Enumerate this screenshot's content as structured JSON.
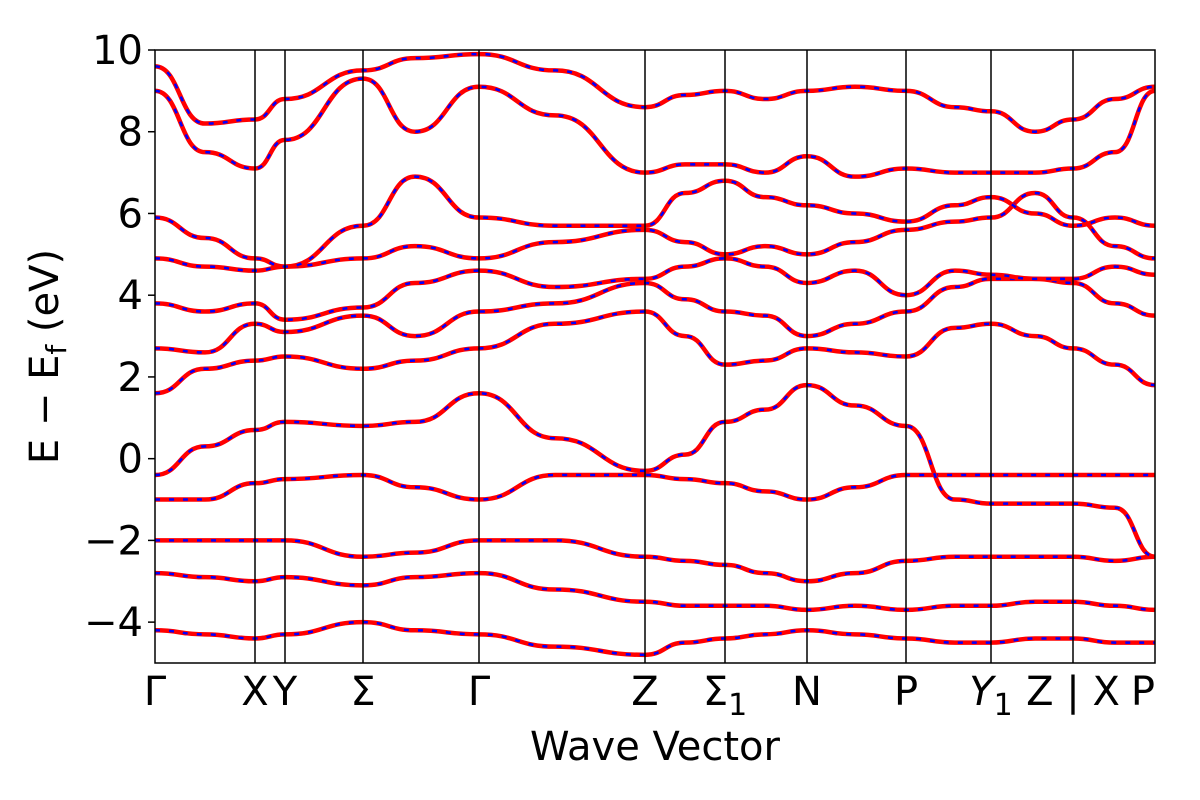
{
  "chart_data": {
    "type": "line",
    "xlabel": "Wave Vector",
    "ylabel": "E − E",
    "ylabel_sub": "f",
    "ylabel_unit": " (eV)",
    "ylim": [
      -5,
      10
    ],
    "yticks": [
      {
        "value": 10,
        "label": "10"
      },
      {
        "value": 8,
        "label": "8"
      },
      {
        "value": 6,
        "label": "6"
      },
      {
        "value": 4,
        "label": "4"
      },
      {
        "value": 2,
        "label": "2"
      },
      {
        "value": 0,
        "label": "0"
      },
      {
        "value": -2,
        "label": "−2"
      },
      {
        "value": -4,
        "label": "−4"
      }
    ],
    "kpoints": [
      {
        "x": 0.0,
        "label": "Γ"
      },
      {
        "x": 0.1,
        "label": "X"
      },
      {
        "x": 0.13,
        "label": "Y"
      },
      {
        "x": 0.208,
        "label": "Σ"
      },
      {
        "x": 0.324,
        "label": "Γ"
      },
      {
        "x": 0.49,
        "label": "Z"
      },
      {
        "x": 0.57,
        "label": "Σ",
        "sub": "1"
      },
      {
        "x": 0.652,
        "label": "N"
      },
      {
        "x": 0.751,
        "label": "P"
      },
      {
        "x": 0.836,
        "label": "Y",
        "sub": "1",
        "italic": true
      },
      {
        "x": 0.918,
        "label": "Z | X"
      },
      {
        "x": 1.0,
        "label": "P"
      }
    ],
    "grid": false,
    "legend": "none",
    "line_colors": {
      "primary": "#ff0000",
      "secondary": "#0000ff"
    },
    "series": [
      {
        "x": [
          0,
          0.05,
          0.1,
          0.13,
          0.208,
          0.26,
          0.324,
          0.4,
          0.49,
          0.53,
          0.57,
          0.61,
          0.652,
          0.7,
          0.751,
          0.8,
          0.836,
          0.88,
          0.918,
          0.96,
          1.0
        ],
        "y": [
          -4.2,
          -4.3,
          -4.4,
          -4.3,
          -4.0,
          -4.2,
          -4.3,
          -4.6,
          -4.8,
          -4.5,
          -4.4,
          -4.3,
          -4.2,
          -4.3,
          -4.4,
          -4.5,
          -4.5,
          -4.4,
          -4.4,
          -4.5,
          -4.5
        ]
      },
      {
        "x": [
          0,
          0.05,
          0.1,
          0.13,
          0.208,
          0.26,
          0.324,
          0.4,
          0.49,
          0.53,
          0.57,
          0.61,
          0.652,
          0.7,
          0.751,
          0.8,
          0.836,
          0.88,
          0.918,
          0.96,
          1.0
        ],
        "y": [
          -2.8,
          -2.9,
          -3.0,
          -2.9,
          -3.1,
          -2.9,
          -2.8,
          -3.2,
          -3.5,
          -3.6,
          -3.6,
          -3.6,
          -3.7,
          -3.6,
          -3.7,
          -3.6,
          -3.6,
          -3.5,
          -3.5,
          -3.6,
          -3.7
        ]
      },
      {
        "x": [
          0,
          0.05,
          0.1,
          0.13,
          0.208,
          0.26,
          0.324,
          0.4,
          0.49,
          0.53,
          0.57,
          0.61,
          0.652,
          0.7,
          0.751,
          0.8,
          0.836,
          0.88,
          0.918,
          0.96,
          1.0
        ],
        "y": [
          -2.0,
          -2.0,
          -2.0,
          -2.0,
          -2.4,
          -2.3,
          -2.0,
          -2.0,
          -2.4,
          -2.5,
          -2.6,
          -2.8,
          -3.0,
          -2.8,
          -2.5,
          -2.4,
          -2.4,
          -2.4,
          -2.4,
          -2.5,
          -2.4
        ]
      },
      {
        "x": [
          0,
          0.05,
          0.1,
          0.13,
          0.208,
          0.26,
          0.324,
          0.4,
          0.49,
          0.53,
          0.57,
          0.61,
          0.652,
          0.7,
          0.751,
          0.8,
          0.836,
          0.88,
          0.918,
          0.96,
          1.0
        ],
        "y": [
          -1.0,
          -1.0,
          -0.6,
          -0.5,
          -0.4,
          -0.7,
          -1.0,
          -0.4,
          -0.4,
          -0.5,
          -0.6,
          -0.8,
          -1.0,
          -0.7,
          -0.4,
          -0.4,
          -0.4,
          -0.4,
          -0.4,
          -0.4,
          -0.4
        ]
      },
      {
        "x": [
          0,
          0.05,
          0.1,
          0.13,
          0.208,
          0.26,
          0.324,
          0.4,
          0.49,
          0.53,
          0.57,
          0.61,
          0.652,
          0.7,
          0.751,
          0.8,
          0.836,
          0.88,
          0.918,
          0.96,
          1.0
        ],
        "y": [
          -0.4,
          0.3,
          0.7,
          0.9,
          0.8,
          0.9,
          1.6,
          0.5,
          -0.3,
          0.1,
          0.9,
          1.2,
          1.8,
          1.3,
          0.8,
          -1.0,
          -1.1,
          -1.1,
          -1.1,
          -1.2,
          -2.4
        ]
      },
      {
        "x": [
          0,
          0.05,
          0.1,
          0.13,
          0.208,
          0.26,
          0.324,
          0.4,
          0.49,
          0.53,
          0.57,
          0.61,
          0.652,
          0.7,
          0.751,
          0.8,
          0.836,
          0.88,
          0.918,
          0.96,
          1.0
        ],
        "y": [
          1.6,
          2.2,
          2.4,
          2.5,
          2.2,
          2.4,
          2.7,
          3.3,
          3.6,
          3.0,
          2.3,
          2.4,
          2.7,
          2.6,
          2.5,
          3.2,
          3.3,
          3.0,
          2.7,
          2.3,
          1.8
        ]
      },
      {
        "x": [
          0,
          0.05,
          0.1,
          0.13,
          0.208,
          0.26,
          0.324,
          0.4,
          0.49,
          0.53,
          0.57,
          0.61,
          0.652,
          0.7,
          0.751,
          0.8,
          0.836,
          0.88,
          0.918,
          0.96,
          1.0
        ],
        "y": [
          2.7,
          2.6,
          3.3,
          3.1,
          3.5,
          3.0,
          3.6,
          3.8,
          4.3,
          3.9,
          3.6,
          3.5,
          3.0,
          3.3,
          3.6,
          4.2,
          4.4,
          4.4,
          4.3,
          3.8,
          3.5
        ]
      },
      {
        "x": [
          0,
          0.05,
          0.1,
          0.13,
          0.208,
          0.26,
          0.324,
          0.4,
          0.49,
          0.53,
          0.57,
          0.61,
          0.652,
          0.7,
          0.751,
          0.8,
          0.836,
          0.88,
          0.918,
          0.96,
          1.0
        ],
        "y": [
          3.8,
          3.6,
          3.8,
          3.4,
          3.7,
          4.3,
          4.6,
          4.2,
          4.4,
          4.7,
          4.9,
          4.7,
          4.3,
          4.6,
          4.0,
          4.6,
          4.5,
          4.4,
          4.4,
          4.7,
          4.5
        ]
      },
      {
        "x": [
          0,
          0.05,
          0.1,
          0.13,
          0.208,
          0.26,
          0.324,
          0.4,
          0.49,
          0.53,
          0.57,
          0.61,
          0.652,
          0.7,
          0.751,
          0.8,
          0.836,
          0.88,
          0.918,
          0.96,
          1.0
        ],
        "y": [
          4.9,
          4.7,
          4.6,
          4.7,
          4.9,
          5.2,
          4.9,
          5.3,
          5.6,
          5.3,
          5.0,
          5.2,
          5.0,
          5.3,
          5.6,
          5.8,
          5.9,
          6.5,
          5.9,
          5.2,
          4.9
        ]
      },
      {
        "x": [
          0,
          0.05,
          0.1,
          0.13,
          0.208,
          0.26,
          0.324,
          0.4,
          0.49,
          0.53,
          0.57,
          0.61,
          0.652,
          0.7,
          0.751,
          0.8,
          0.836,
          0.88,
          0.918,
          0.96,
          1.0
        ],
        "y": [
          5.9,
          5.4,
          4.9,
          4.7,
          5.7,
          6.9,
          5.9,
          5.7,
          5.7,
          6.5,
          6.8,
          6.4,
          6.2,
          6.0,
          5.8,
          6.2,
          6.4,
          6.0,
          5.7,
          5.9,
          5.7
        ]
      },
      {
        "x": [
          0,
          0.05,
          0.1,
          0.13,
          0.208,
          0.26,
          0.324,
          0.4,
          0.49,
          0.53,
          0.57,
          0.61,
          0.652,
          0.7,
          0.751,
          0.8,
          0.836,
          0.88,
          0.918,
          0.96,
          1.0
        ],
        "y": [
          9.0,
          7.5,
          7.1,
          7.8,
          9.3,
          8.0,
          9.1,
          8.4,
          7.0,
          7.2,
          7.2,
          7.0,
          7.4,
          6.9,
          7.1,
          7.0,
          7.0,
          7.0,
          7.1,
          7.5,
          9.0
        ]
      },
      {
        "x": [
          0,
          0.05,
          0.1,
          0.13,
          0.208,
          0.26,
          0.324,
          0.4,
          0.49,
          0.53,
          0.57,
          0.61,
          0.652,
          0.7,
          0.751,
          0.8,
          0.836,
          0.88,
          0.918,
          0.96,
          1.0
        ],
        "y": [
          9.6,
          8.2,
          8.3,
          8.8,
          9.5,
          9.8,
          9.9,
          9.5,
          8.6,
          8.9,
          9.0,
          8.8,
          9.0,
          9.1,
          9.0,
          8.6,
          8.5,
          8.0,
          8.3,
          8.8,
          9.1
        ]
      }
    ]
  }
}
